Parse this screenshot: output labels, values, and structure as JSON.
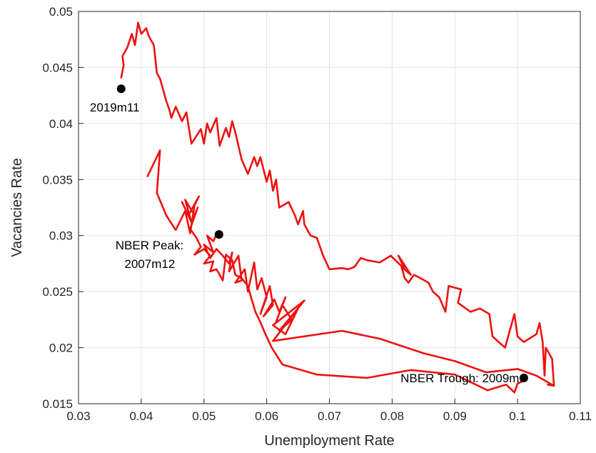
{
  "chart_data": {
    "type": "line",
    "xlabel": "Unemployment Rate",
    "ylabel": "Vacancies Rate",
    "xlim": [
      0.03,
      0.11
    ],
    "ylim": [
      0.015,
      0.05
    ],
    "xticks": [
      "0.03",
      "0.04",
      "0.05",
      "0.06",
      "0.07",
      "0.08",
      "0.09",
      "0.1",
      "0.11"
    ],
    "yticks": [
      "0.015",
      "0.02",
      "0.025",
      "0.03",
      "0.035",
      "0.04",
      "0.045",
      "0.05"
    ],
    "grid": true,
    "line_color": "#ee1111",
    "marker_color": "#000000",
    "series": [
      {
        "x": [
          0.041,
          0.043,
          0.0425,
          0.044,
          0.0455,
          0.047,
          0.0478,
          0.0485,
          0.0492,
          0.0475,
          0.0465,
          0.048,
          0.047,
          0.0485,
          0.049,
          0.0478,
          0.0488,
          0.0495,
          0.0485,
          0.05,
          0.051,
          0.05,
          0.0515,
          0.051,
          0.052,
          0.053,
          0.0535,
          0.0545,
          0.055,
          0.056,
          0.057,
          0.0575,
          0.0582,
          0.0588,
          0.0592,
          0.0598,
          0.0608,
          0.0625,
          0.068,
          0.076,
          0.083,
          0.09,
          0.0952,
          0.0982,
          0.0995,
          0.1,
          0.1008,
          0.1012
        ],
        "y": [
          0.0353,
          0.0376,
          0.0338,
          0.0318,
          0.0305,
          0.0322,
          0.0302,
          0.0327,
          0.0335,
          0.0318,
          0.033,
          0.0312,
          0.0332,
          0.0318,
          0.0325,
          0.0306,
          0.0298,
          0.029,
          0.0283,
          0.0288,
          0.0282,
          0.0275,
          0.0277,
          0.0268,
          0.027,
          0.026,
          0.0283,
          0.0278,
          0.0265,
          0.0262,
          0.0255,
          0.0245,
          0.0232,
          0.0225,
          0.022,
          0.0212,
          0.02,
          0.0185,
          0.0176,
          0.0173,
          0.018,
          0.0176,
          0.0162,
          0.0167,
          0.016,
          0.0168,
          0.017,
          0.0173
        ]
      },
      {
        "x": [
          0.052,
          0.0515,
          0.0505,
          0.0515,
          0.05,
          0.051,
          0.052,
          0.053,
          0.054,
          0.0545,
          0.054,
          0.0555,
          0.056,
          0.055,
          0.0565,
          0.057,
          0.058,
          0.0585,
          0.0592,
          0.06,
          0.059,
          0.0605,
          0.061,
          0.0595,
          0.0612,
          0.062,
          0.063,
          0.0615,
          0.0625,
          0.064,
          0.062,
          0.066,
          0.061,
          0.063,
          0.065,
          0.061,
          0.072,
          0.078,
          0.085,
          0.09,
          0.095,
          0.1,
          0.103,
          0.1058,
          0.1048
        ],
        "y": [
          0.0301,
          0.0295,
          0.03,
          0.0285,
          0.0292,
          0.028,
          0.0288,
          0.0282,
          0.0275,
          0.0285,
          0.0268,
          0.0282,
          0.026,
          0.0258,
          0.027,
          0.025,
          0.0276,
          0.0252,
          0.0262,
          0.0245,
          0.023,
          0.0255,
          0.0238,
          0.0228,
          0.0243,
          0.0232,
          0.0245,
          0.0223,
          0.0238,
          0.0225,
          0.0215,
          0.0242,
          0.022,
          0.0212,
          0.0235,
          0.0206,
          0.0215,
          0.0208,
          0.0195,
          0.0188,
          0.0178,
          0.0181,
          0.0175,
          0.0166,
          0.0167
        ]
      },
      {
        "x": [
          0.1058,
          0.1055,
          0.1045,
          0.1043,
          0.104,
          0.1035,
          0.103,
          0.101,
          0.1,
          0.0995,
          0.098,
          0.096,
          0.0955,
          0.094,
          0.0925,
          0.0905,
          0.091,
          0.089,
          0.0885,
          0.0875,
          0.0865,
          0.0858,
          0.0845,
          0.0835,
          0.0826,
          0.082,
          0.0815,
          0.083,
          0.081,
          0.082,
          0.0805,
          0.0798,
          0.078,
          0.076,
          0.075,
          0.074,
          0.073,
          0.072,
          0.07,
          0.069,
          0.068,
          0.067,
          0.066,
          0.0658,
          0.065,
          0.0645,
          0.0635,
          0.062,
          0.0615,
          0.061,
          0.0605,
          0.06,
          0.059,
          0.0585,
          0.058,
          0.057,
          0.056,
          0.0555,
          0.055,
          0.0545,
          0.054,
          0.0535,
          0.0525,
          0.052,
          0.051,
          0.0505,
          0.05,
          0.0495,
          0.048,
          0.0472,
          0.0465,
          0.0455,
          0.0448,
          0.0445,
          0.044,
          0.043,
          0.0425,
          0.042,
          0.0412,
          0.0408,
          0.04,
          0.0395,
          0.039,
          0.0385,
          0.0378,
          0.037,
          0.0372,
          0.0368
        ],
        "y": [
          0.0166,
          0.019,
          0.02,
          0.0175,
          0.0205,
          0.0222,
          0.0212,
          0.0205,
          0.021,
          0.023,
          0.02,
          0.021,
          0.023,
          0.0235,
          0.0232,
          0.024,
          0.0252,
          0.0255,
          0.0232,
          0.0245,
          0.025,
          0.0258,
          0.0262,
          0.0265,
          0.0258,
          0.0262,
          0.0272,
          0.0265,
          0.0282,
          0.027,
          0.0278,
          0.0282,
          0.0276,
          0.0278,
          0.028,
          0.0272,
          0.027,
          0.0271,
          0.027,
          0.0282,
          0.0298,
          0.03,
          0.031,
          0.0322,
          0.031,
          0.0318,
          0.033,
          0.0325,
          0.035,
          0.034,
          0.0358,
          0.0348,
          0.037,
          0.0362,
          0.037,
          0.0355,
          0.0368,
          0.038,
          0.0392,
          0.0402,
          0.0388,
          0.0396,
          0.038,
          0.0405,
          0.0392,
          0.04,
          0.0382,
          0.0395,
          0.0382,
          0.041,
          0.0402,
          0.0415,
          0.0405,
          0.0412,
          0.042,
          0.044,
          0.0445,
          0.047,
          0.0478,
          0.0485,
          0.048,
          0.049,
          0.047,
          0.048,
          0.0468,
          0.046,
          0.0452,
          0.0441
        ]
      }
    ],
    "annotations": [
      {
        "label": "2019m11",
        "x": 0.0368,
        "y": 0.0431
      },
      {
        "label_lines": [
          "NBER Peak:",
          "2007m12"
        ],
        "x": 0.0524,
        "y": 0.0301
      },
      {
        "label": "NBER Trough: 2009m6",
        "x": 0.101,
        "y": 0.0173
      }
    ]
  }
}
